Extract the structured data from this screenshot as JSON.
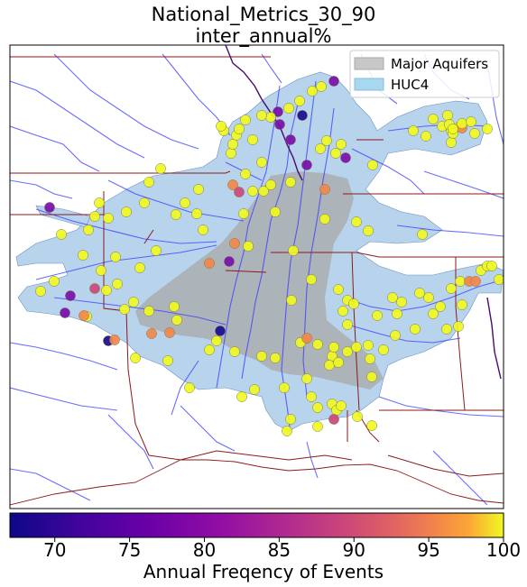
{
  "title_line1": "National_Metrics_30_90",
  "title_line2": "inter_annual%",
  "legend": {
    "items": [
      {
        "label": "Major Aquifers",
        "color": "#c8c8c8"
      },
      {
        "label": "HUC4",
        "color": "#a8d8f0"
      }
    ]
  },
  "colorbar": {
    "label": "Annual Freqency of Events",
    "min": 67,
    "max": 100,
    "ticks": [
      "70",
      "75",
      "80",
      "85",
      "90",
      "95",
      "100"
    ],
    "colormap": "plasma"
  },
  "colors": {
    "basin_fill": "#b8d4ec",
    "aquifer_fill": "#a8a8a8",
    "rivers": "#2a2aff",
    "state_lines": "#8b1a1a",
    "country_line": "#4b0a6e",
    "frame": "#000000"
  }
}
